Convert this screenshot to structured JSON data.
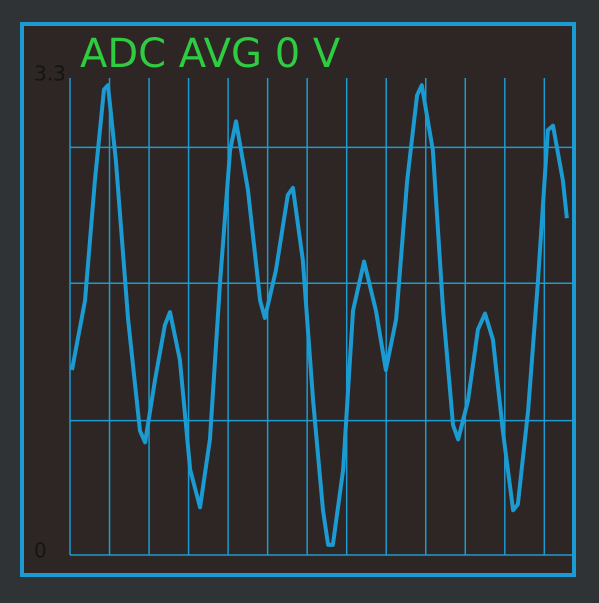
{
  "chart_data": {
    "type": "line",
    "title": "ADC AVG 0 V",
    "x": [
      0.5,
      3.8,
      6.3,
      8.6,
      9.6,
      11.6,
      14.7,
      17.7,
      19.0,
      21.5,
      24.0,
      25.3,
      27.8,
      30.4,
      32.9,
      35.4,
      38.0,
      40.5,
      42.0,
      45.0,
      48.1,
      49.3,
      52.1,
      55.1,
      56.4,
      58.9,
      61.5,
      64.0,
      65.3,
      66.5,
      69.1,
      71.6,
      74.4,
      77.4,
      79.9,
      82.5,
      85.3,
      87.8,
      89.0,
      91.8,
      94.4,
      96.9,
      98.2,
      100.7,
      103.2,
      105.0,
      107.0,
      109.5,
      112.1,
      113.3,
      115.9,
      118.4,
      120.9,
      122.2,
      124.7,
      125.7
    ],
    "series": [
      {
        "color": "#1b9bd1",
        "values": [
          1.28,
          1.76,
          2.59,
          3.22,
          3.25,
          2.73,
          1.63,
          0.86,
          0.78,
          1.21,
          1.59,
          1.68,
          1.35,
          0.59,
          0.33,
          0.8,
          1.9,
          2.8,
          3.0,
          2.53,
          1.76,
          1.64,
          1.97,
          2.49,
          2.54,
          2.04,
          1.07,
          0.31,
          0.07,
          0.07,
          0.59,
          1.69,
          2.03,
          1.69,
          1.28,
          1.63,
          2.59,
          3.18,
          3.25,
          2.8,
          1.69,
          0.9,
          0.8,
          1.07,
          1.56,
          1.67,
          1.49,
          0.86,
          0.31,
          0.35,
          1.0,
          1.9,
          2.94,
          2.97,
          2.59,
          2.33
        ]
      }
    ],
    "xlim": [
      0,
      127
    ],
    "ylim": [
      0,
      3.3
    ],
    "yticks": [
      0,
      3.3
    ],
    "xgrid": [
      0,
      10,
      20,
      30,
      40,
      50,
      60,
      70,
      80,
      90,
      100,
      110,
      120
    ],
    "ygrid": [
      0.93,
      1.88,
      2.82
    ],
    "grid": true,
    "grid_color": "#1b9bd1",
    "title_color": "#2ecc40"
  }
}
